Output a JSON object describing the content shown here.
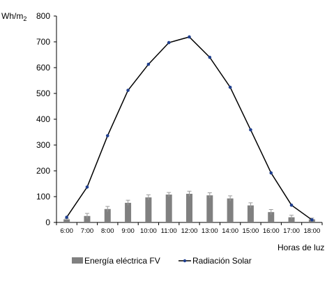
{
  "chart_data": {
    "type": "bar+line",
    "title": "",
    "ylabel": "Wh/m2",
    "xlabel": "Horas de luz",
    "ylim": [
      0,
      800
    ],
    "yticks": [
      0,
      100,
      200,
      300,
      400,
      500,
      600,
      700,
      800
    ],
    "categories": [
      "6:00",
      "7:00",
      "8:00",
      "9:00",
      "10:00",
      "11:00",
      "12:00",
      "13:00",
      "14:00",
      "15:00",
      "16:00",
      "17:00",
      "18:00"
    ],
    "series": [
      {
        "name": "Energía eléctrica FV",
        "kind": "bar",
        "color": "#808080",
        "values": [
          12,
          25,
          52,
          76,
          97,
          108,
          111,
          105,
          93,
          66,
          40,
          20,
          12
        ],
        "errors": [
          3,
          10,
          10,
          10,
          10,
          8,
          10,
          10,
          10,
          10,
          10,
          8,
          5
        ]
      },
      {
        "name": "Radiación Solar",
        "kind": "line",
        "color": "#000000",
        "marker_color": "#1f3f8f",
        "values": [
          20,
          137,
          336,
          512,
          613,
          697,
          719,
          640,
          524,
          359,
          192,
          67,
          10
        ]
      }
    ],
    "legend_position": "bottom",
    "grid": false
  }
}
